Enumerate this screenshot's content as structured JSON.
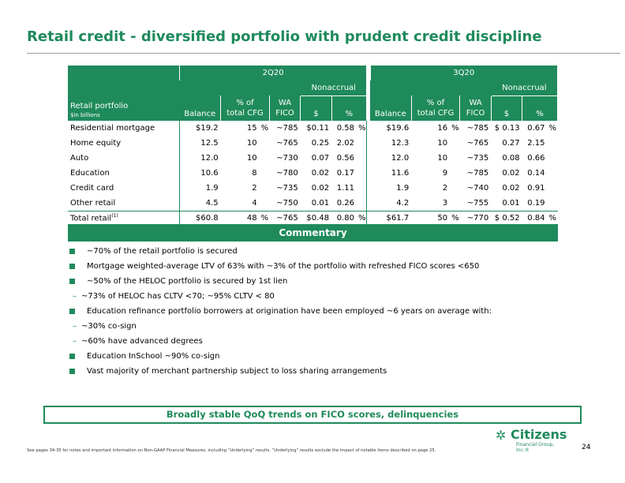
{
  "title": "Retail credit - diversified portfolio with prudent credit discipline",
  "table": {
    "row_header_title": "Retail portfolio",
    "row_header_sub": "$in billions",
    "period1": "2Q20",
    "period2": "3Q20",
    "nonaccrual": "Nonaccrual",
    "col_balance": "Balance",
    "col_pct_of": "% of",
    "col_total_cfg": "total CFG",
    "col_wa": "WA",
    "col_fico": "FICO",
    "col_dollar": "$",
    "col_pct": "%",
    "rows": [
      {
        "label": "Residential mortgage",
        "b1": "$19.2",
        "p1": "15",
        "p1s": "%",
        "f1": "~785",
        "d1": "$0.11",
        "n1": "0.58",
        "n1s": "%",
        "b2": "$19.6",
        "p2": "16",
        "p2s": "%",
        "f2": "~785",
        "d2": "$ 0.13",
        "n2": "0.67",
        "n2s": "%"
      },
      {
        "label": "Home equity",
        "b1": "12.5",
        "p1": "10",
        "p1s": "",
        "f1": "~765",
        "d1": "0.25",
        "n1": "2.02",
        "n1s": "",
        "b2": "12.3",
        "p2": "10",
        "p2s": "",
        "f2": "~765",
        "d2": "0.27",
        "n2": "2.15",
        "n2s": ""
      },
      {
        "label": "Auto",
        "b1": "12.0",
        "p1": "10",
        "p1s": "",
        "f1": "~730",
        "d1": "0.07",
        "n1": "0.56",
        "n1s": "",
        "b2": "12.0",
        "p2": "10",
        "p2s": "",
        "f2": "~735",
        "d2": "0.08",
        "n2": "0.66",
        "n2s": ""
      },
      {
        "label": "Education",
        "b1": "10.6",
        "p1": "8",
        "p1s": "",
        "f1": "~780",
        "d1": "0.02",
        "n1": "0.17",
        "n1s": "",
        "b2": "11.6",
        "p2": "9",
        "p2s": "",
        "f2": "~785",
        "d2": "0.02",
        "n2": "0.14",
        "n2s": ""
      },
      {
        "label": "Credit card",
        "b1": "1.9",
        "p1": "2",
        "p1s": "",
        "f1": "~735",
        "d1": "0.02",
        "n1": "1.11",
        "n1s": "",
        "b2": "1.9",
        "p2": "2",
        "p2s": "",
        "f2": "~740",
        "d2": "0.02",
        "n2": "0.91",
        "n2s": ""
      },
      {
        "label": "Other retail",
        "b1": "4.5",
        "p1": "4",
        "p1s": "",
        "f1": "~750",
        "d1": "0.01",
        "n1": "0.26",
        "n1s": "",
        "b2": "4.2",
        "p2": "3",
        "p2s": "",
        "f2": "~755",
        "d2": "0.01",
        "n2": "0.19",
        "n2s": ""
      }
    ],
    "total": {
      "label": "Total retail",
      "label_sup": "(1)",
      "b1": "$60.8",
      "p1": "48",
      "p1s": "%",
      "f1": "~765",
      "d1": "$0.48",
      "n1": "0.80",
      "n1s": "%",
      "b2": "$61.7",
      "p2": "50",
      "p2s": "%",
      "f2": "~770",
      "d2": "$ 0.52",
      "n2": "0.84",
      "n2s": "%"
    }
  },
  "commentary": {
    "heading": "Commentary",
    "items": [
      {
        "type": "bullet",
        "text": "~70% of the retail portfolio is secured"
      },
      {
        "type": "bullet",
        "text": "Mortgage weighted-average LTV of 63% with ~3% of the portfolio with refreshed FICO scores <650"
      },
      {
        "type": "bullet",
        "text": "~50% of the HELOC portfolio is secured by 1st lien"
      },
      {
        "type": "dash",
        "text": "~73% of HELOC has CLTV  <70; ~95% CLTV < 80"
      },
      {
        "type": "bullet",
        "text": "Education refinance portfolio borrowers at origination have been employed ~6 years on average with:"
      },
      {
        "type": "dash",
        "text": "~30% co-sign"
      },
      {
        "type": "dash",
        "text": "~60% have advanced degrees"
      },
      {
        "type": "bullet",
        "text": "Education InSchool ~90% co-sign"
      },
      {
        "type": "bullet",
        "text": "Vast majority of merchant partnership subject to loss sharing arrangements"
      }
    ]
  },
  "takeaway": "Broadly stable QoQ trends on FICO scores, delinquencies",
  "logo": {
    "name": "Citizens",
    "sub": "Financial Group, Inc.®",
    "icon": "citizens-logo-mark"
  },
  "page_number": "24",
  "footnote": "See pages 34-35 for notes and important information on Non-GAAP Financial Measures, including “Underlying” results. “Underlying” results exclude the impact of notable items described on page 25.",
  "colors": {
    "brand_green": "#1f8a5b"
  }
}
